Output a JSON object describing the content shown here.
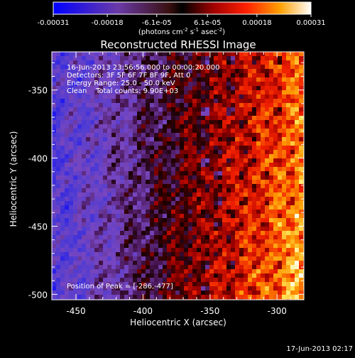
{
  "colorbar": {
    "ticks": [
      "-0.00031",
      "-0.00018",
      "-6.1e-05",
      "6.1e-05",
      "0.00018",
      "0.00031"
    ],
    "tick_values": [
      -0.00031,
      -0.00018,
      -6.1e-05,
      6.1e-05,
      0.00018,
      0.00031
    ],
    "range": [
      -0.00031,
      0.00031
    ],
    "unit_main": "(photons cm",
    "unit_exp1": "-2",
    "unit_s": " s",
    "unit_exp2": "-1",
    "unit_asec": " asec",
    "unit_exp3": "-2",
    "unit_close": ")"
  },
  "chart_data": {
    "type": "heatmap",
    "title": "Reconstructed RHESSI Image",
    "xlabel": "Heliocentric X (arcsec)",
    "ylabel": "Heliocentric Y (arcsec)",
    "xlim": [
      -468,
      -280
    ],
    "ylim": [
      -504,
      -322
    ],
    "xticks": [
      -450,
      -400,
      -350,
      -300
    ],
    "yticks": [
      -350,
      -400,
      -450,
      -500
    ],
    "xtick_labels": [
      "-450",
      "-400",
      "-350",
      "-300"
    ],
    "ytick_labels": [
      "-350",
      "-400",
      "-450",
      "-500"
    ],
    "colormap": "blue-purple-red-yellow-white",
    "peak_position": [
      -286,
      -477
    ],
    "info_lines": [
      "16-Jun-2013 23:56:56.000 to 00:00:20.000",
      "Detectors: 3F 5F 6F 7F 8F 9F, Att 0",
      "Energy Range: 25.0 - 50.0 keV",
      "Clean    Total counts: 9.90E+03"
    ],
    "peak_label": "Position of Peak = [-286,-477]"
  },
  "timestamp": "17-Jun-2013 02:17"
}
